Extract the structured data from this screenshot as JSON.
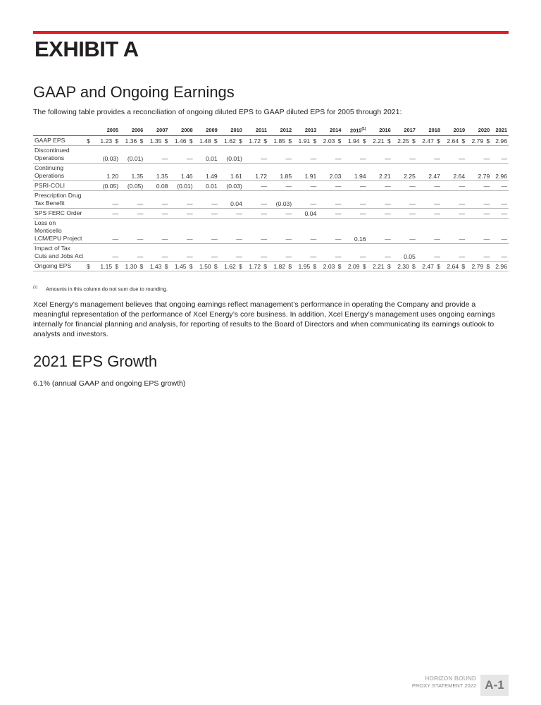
{
  "exhibit_title": "EXHIBIT A",
  "section1_title": "GAAP and Ongoing Earnings",
  "intro": "The following table provides a reconciliation of ongoing diluted EPS to GAAP diluted EPS for 2005 through 2021:",
  "table": {
    "years": [
      "2005",
      "2006",
      "2007",
      "2008",
      "2009",
      "2010",
      "2011",
      "2012",
      "2013",
      "2014",
      "2015",
      "2016",
      "2017",
      "2018",
      "2019",
      "2020",
      "2021"
    ],
    "footnote_year_index": 10,
    "footnote_marker": "(1)",
    "currency": "$",
    "rows": [
      {
        "label": "GAAP EPS",
        "dollar": true,
        "values": [
          "1.23",
          "1.36",
          "1.35",
          "1.46",
          "1.48",
          "1.62",
          "1.72",
          "1.85",
          "1.91",
          "2.03",
          "1.94",
          "2.21",
          "2.25",
          "2.47",
          "2.64",
          "2.79",
          "2.96"
        ]
      },
      {
        "label": "Discontinued Operations",
        "dollar": false,
        "values": [
          "(0.03)",
          "(0.01)",
          "—",
          "—",
          "0.01",
          "(0.01)",
          "—",
          "—",
          "—",
          "—",
          "—",
          "—",
          "—",
          "—",
          "—",
          "—",
          "—"
        ]
      },
      {
        "label": "Continuing Operations",
        "dollar": false,
        "values": [
          "1.20",
          "1.35",
          "1.35",
          "1.46",
          "1.49",
          "1.61",
          "1.72",
          "1.85",
          "1.91",
          "2.03",
          "1.94",
          "2.21",
          "2.25",
          "2.47",
          "2.64",
          "2.79",
          "2.96"
        ]
      },
      {
        "label": "PSRI-COLI",
        "dollar": false,
        "values": [
          "(0.05)",
          "(0.05)",
          "0.08",
          "(0.01)",
          "0.01",
          "(0.03)",
          "—",
          "—",
          "—",
          "—",
          "—",
          "—",
          "—",
          "—",
          "—",
          "—",
          "—"
        ]
      },
      {
        "label": "Prescription Drug Tax Benefit",
        "dollar": false,
        "values": [
          "—",
          "—",
          "—",
          "—",
          "—",
          "0.04",
          "—",
          "(0.03)",
          "—",
          "—",
          "—",
          "—",
          "—",
          "—",
          "—",
          "—",
          "—"
        ]
      },
      {
        "label": "SPS FERC Order",
        "dollar": false,
        "values": [
          "—",
          "—",
          "—",
          "—",
          "—",
          "—",
          "—",
          "—",
          "0.04",
          "—",
          "—",
          "—",
          "—",
          "—",
          "—",
          "—",
          "—"
        ]
      },
      {
        "label": "Loss on Monticello LCM/EPU Project",
        "dollar": false,
        "values": [
          "—",
          "—",
          "—",
          "—",
          "—",
          "—",
          "—",
          "—",
          "—",
          "—",
          "0.16",
          "—",
          "—",
          "—",
          "—",
          "—",
          "—"
        ]
      },
      {
        "label": "Impact of Tax Cuts and Jobs Act",
        "dollar": false,
        "values": [
          "—",
          "—",
          "—",
          "—",
          "—",
          "—",
          "—",
          "—",
          "—",
          "—",
          "—",
          "—",
          "0.05",
          "—",
          "—",
          "—",
          "—"
        ]
      },
      {
        "label": "Ongoing EPS",
        "dollar": true,
        "values": [
          "1.15",
          "1.30",
          "1.43",
          "1.45",
          "1.50",
          "1.62",
          "1.72",
          "1.82",
          "1.95",
          "2.03",
          "2.09",
          "2.21",
          "2.30",
          "2.47",
          "2.64",
          "2.79",
          "2.96"
        ]
      }
    ]
  },
  "footnote": {
    "marker": "(1)",
    "text": "Amounts in this column do not sum due to rounding."
  },
  "paragraph": "Xcel Energy’s management believes that ongoing earnings reflect management’s performance in operating the Company and provide a meaningful representation of the performance of Xcel Energy’s core business. In addition, Xcel Energy’s management uses ongoing earnings internally for financial planning and analysis, for reporting of results to the Board of Directors and when communicating its earnings outlook to analysts and investors.",
  "section2_title": "2021 EPS Growth",
  "growth_text": "6.1% (annual GAAP and ongoing EPS growth)",
  "footer": {
    "brand": "HORIZON BOUND",
    "doc": "PROXY STATEMENT 2022",
    "page": "A-1"
  }
}
